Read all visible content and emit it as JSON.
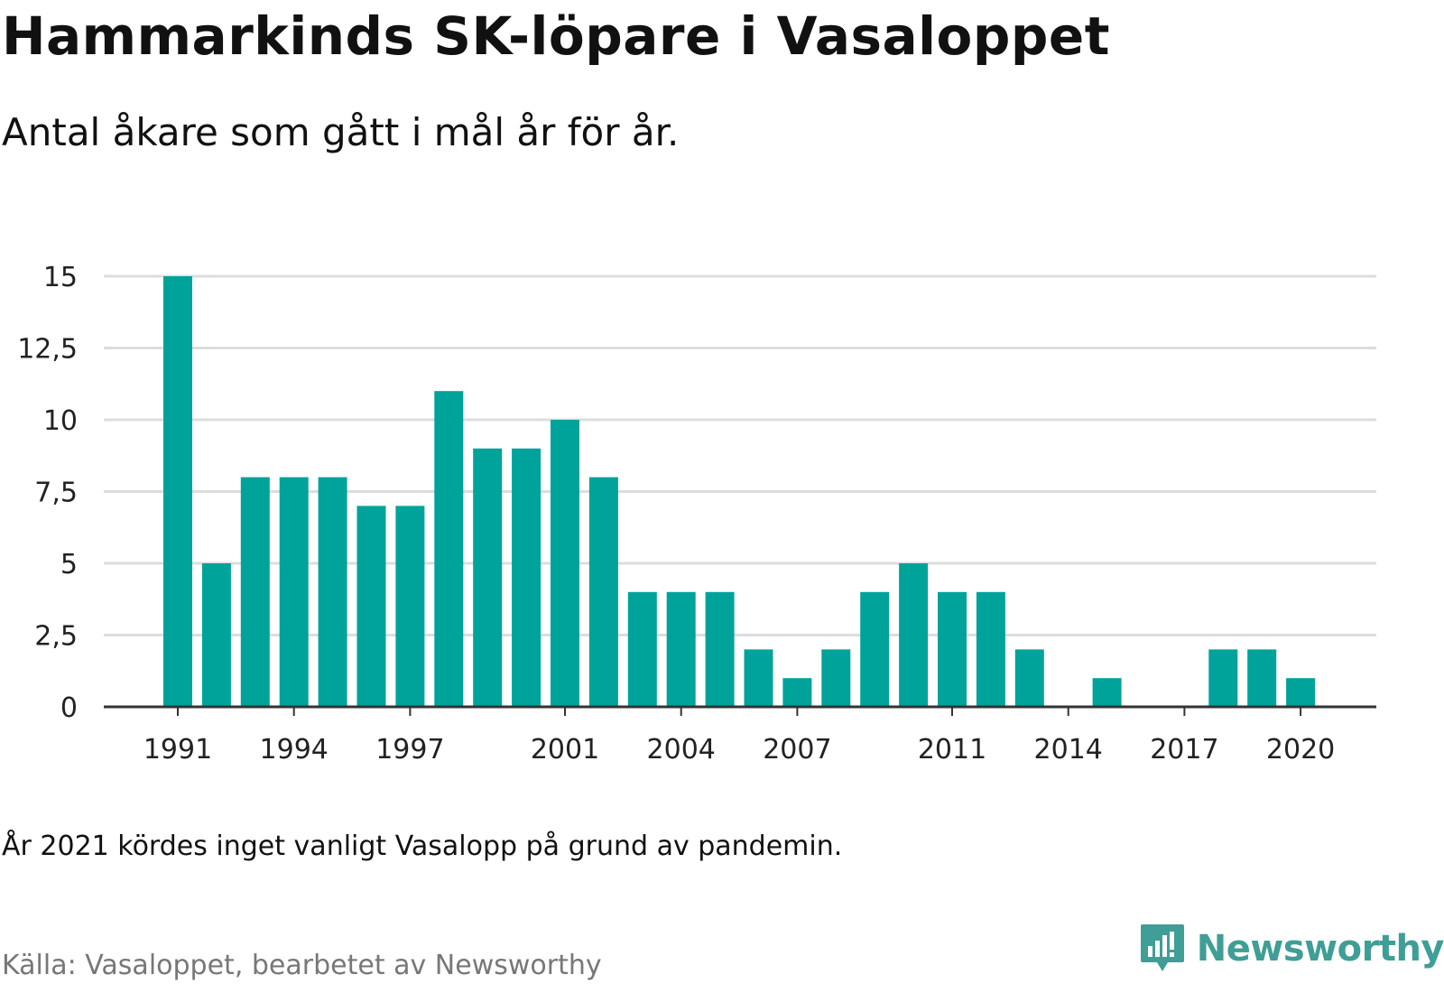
{
  "title": "Hammarkinds SK-löpare i Vasaloppet",
  "subtitle": "Antal åkare som gått i mål år för år.",
  "note": "År 2021 kördes inget vanligt Vasalopp på grund av pandemin.",
  "source": "Källa: Vasaloppet, bearbetet av Newsworthy",
  "logo": {
    "text": "Newsworthy",
    "icon": "newsworthy-chart-bubble-icon",
    "color": "#3f9e95"
  },
  "colors": {
    "bar": "#00a39a",
    "grid": "#dddddd",
    "axis": "#333333"
  },
  "chart_data": {
    "type": "bar",
    "categories": [
      "1991",
      "1992",
      "1993",
      "1994",
      "1995",
      "1996",
      "1997",
      "1998",
      "1999",
      "2000",
      "2001",
      "2002",
      "2003",
      "2004",
      "2005",
      "2006",
      "2007",
      "2008",
      "2009",
      "2010",
      "2011",
      "2012",
      "2013",
      "2014",
      "2015",
      "2016",
      "2017",
      "2018",
      "2019",
      "2020"
    ],
    "values": [
      15,
      5,
      8,
      8,
      8,
      7,
      7,
      11,
      9,
      9,
      10,
      8,
      4,
      4,
      4,
      2,
      1,
      2,
      4,
      5,
      4,
      4,
      2,
      0,
      1,
      0,
      0,
      2,
      2,
      1
    ],
    "x_tick_labels": [
      "1991",
      "1994",
      "1997",
      "2001",
      "2004",
      "2007",
      "2011",
      "2014",
      "2017",
      "2020"
    ],
    "y_ticks": [
      0,
      2.5,
      5,
      7.5,
      10,
      12.5,
      15
    ],
    "y_tick_labels": [
      "0",
      "2,5",
      "5",
      "7,5",
      "10",
      "12,5",
      "15"
    ],
    "ylim": [
      0,
      15
    ],
    "grid": true,
    "xlabel": "",
    "ylabel": ""
  }
}
